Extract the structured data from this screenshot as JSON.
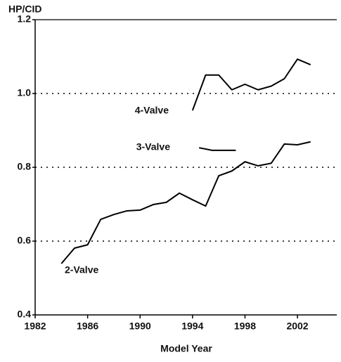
{
  "chart_data": {
    "type": "line",
    "y_label": "HP/CID",
    "x_label": "Model Year",
    "series": [
      {
        "name": "4-Valve",
        "color": "#000000",
        "x": [
          1994,
          1995,
          1996,
          1997,
          1998,
          1999,
          2000,
          2001,
          2002,
          2003
        ],
        "values": [
          0.954,
          1.05,
          1.05,
          1.01,
          1.025,
          1.01,
          1.02,
          1.04,
          1.093,
          1.078
        ]
      },
      {
        "name": "3-Valve",
        "color": "#000000",
        "x": [
          1994.5,
          1995.5,
          1997.3
        ],
        "values": [
          0.853,
          0.846,
          0.846
        ]
      },
      {
        "name": "2-Valve",
        "color": "#000000",
        "x": [
          1984,
          1985,
          1986,
          1987,
          1988,
          1989,
          1990,
          1991,
          1992,
          1993,
          1994,
          1995,
          1996,
          1997,
          1998,
          1999,
          2000,
          2001,
          2002,
          2003
        ],
        "values": [
          0.539,
          0.581,
          0.59,
          0.659,
          0.672,
          0.682,
          0.684,
          0.699,
          0.705,
          0.73,
          0.712,
          0.695,
          0.777,
          0.79,
          0.815,
          0.804,
          0.811,
          0.863,
          0.861,
          0.869
        ]
      }
    ],
    "xlim": [
      1982,
      2005
    ],
    "xticks": [
      1982,
      1986,
      1990,
      1994,
      1998,
      2002
    ],
    "ylim": [
      0.4,
      1.2
    ],
    "yticks": [
      0.4,
      0.6,
      0.8,
      {
        "value": 1.0,
        "label": "1.0"
      },
      1.2
    ],
    "grid": true
  }
}
